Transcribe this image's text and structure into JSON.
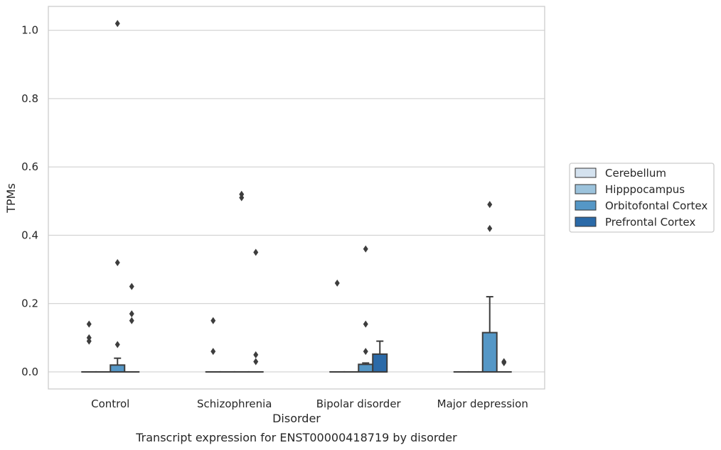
{
  "chart_data": {
    "type": "box",
    "caption": "Transcript expression for ENST00000418719 by disorder",
    "xlabel": "Disorder",
    "ylabel": "TPMs",
    "ylim": [
      -0.05,
      1.07
    ],
    "yticks": [
      "0.0",
      "0.2",
      "0.4",
      "0.6",
      "0.8",
      "1.0"
    ],
    "ytick_values": [
      0.0,
      0.2,
      0.4,
      0.6,
      0.8,
      1.0
    ],
    "grid": "horizontal",
    "legend_position": "right",
    "categories": [
      "Control",
      "Schizophrenia",
      "Bipolar disorder",
      "Major depression"
    ],
    "series": [
      {
        "name": "Cerebellum",
        "color": "#d4e2ef",
        "boxes": [
          {
            "q1": 0,
            "median": 0,
            "q3": 0,
            "whisker_low": 0,
            "whisker_high": 0,
            "outliers": [
              0.14,
              0.1,
              0.09
            ]
          },
          {
            "q1": 0,
            "median": 0,
            "q3": 0,
            "whisker_low": 0,
            "whisker_high": 0,
            "outliers": [
              0.15,
              0.06
            ]
          },
          {
            "q1": 0,
            "median": 0,
            "q3": 0,
            "whisker_low": 0,
            "whisker_high": 0,
            "outliers": [
              0.26
            ]
          },
          {
            "q1": 0,
            "median": 0,
            "q3": 0,
            "whisker_low": 0,
            "whisker_high": 0,
            "outliers": []
          }
        ]
      },
      {
        "name": "Hipppocampus",
        "color": "#9cc3dc",
        "boxes": [
          {
            "q1": 0,
            "median": 0,
            "q3": 0,
            "whisker_low": 0,
            "whisker_high": 0,
            "outliers": []
          },
          {
            "q1": 0,
            "median": 0,
            "q3": 0,
            "whisker_low": 0,
            "whisker_high": 0,
            "outliers": []
          },
          {
            "q1": 0,
            "median": 0,
            "q3": 0,
            "whisker_low": 0,
            "whisker_high": 0,
            "outliers": []
          },
          {
            "q1": 0,
            "median": 0,
            "q3": 0,
            "whisker_low": 0,
            "whisker_high": 0,
            "outliers": []
          }
        ]
      },
      {
        "name": "Orbitofontal Cortex",
        "color": "#5597c6",
        "boxes": [
          {
            "q1": 0,
            "median": 0,
            "q3": 0.02,
            "whisker_low": 0,
            "whisker_high": 0.04,
            "outliers": [
              1.02,
              0.32,
              0.08
            ]
          },
          {
            "q1": 0,
            "median": 0,
            "q3": 0,
            "whisker_low": 0,
            "whisker_high": 0,
            "outliers": [
              0.52,
              0.51
            ]
          },
          {
            "q1": 0,
            "median": 0,
            "q3": 0.022,
            "whisker_low": 0,
            "whisker_high": 0.026,
            "outliers": [
              0.36,
              0.14,
              0.06
            ]
          },
          {
            "q1": 0,
            "median": 0,
            "q3": 0.115,
            "whisker_low": 0,
            "whisker_high": 0.22,
            "outliers": [
              0.49,
              0.42
            ]
          }
        ]
      },
      {
        "name": "Prefrontal Cortex",
        "color": "#2b6aa8",
        "boxes": [
          {
            "q1": 0,
            "median": 0,
            "q3": 0,
            "whisker_low": 0,
            "whisker_high": 0,
            "outliers": [
              0.25,
              0.17,
              0.15
            ]
          },
          {
            "q1": 0,
            "median": 0,
            "q3": 0,
            "whisker_low": 0,
            "whisker_high": 0,
            "outliers": [
              0.35,
              0.05,
              0.03
            ]
          },
          {
            "q1": 0,
            "median": 0,
            "q3": 0.052,
            "whisker_low": 0,
            "whisker_high": 0.09,
            "outliers": []
          },
          {
            "q1": 0,
            "median": 0,
            "q3": 0,
            "whisker_low": 0,
            "whisker_high": 0,
            "outliers": [
              0.03,
              0.027
            ]
          }
        ]
      }
    ]
  },
  "colors": {
    "grid": "#d0d0d0",
    "frame": "#cccccc",
    "edge": "#3d3d3d",
    "legend_border": "#cccccc"
  }
}
